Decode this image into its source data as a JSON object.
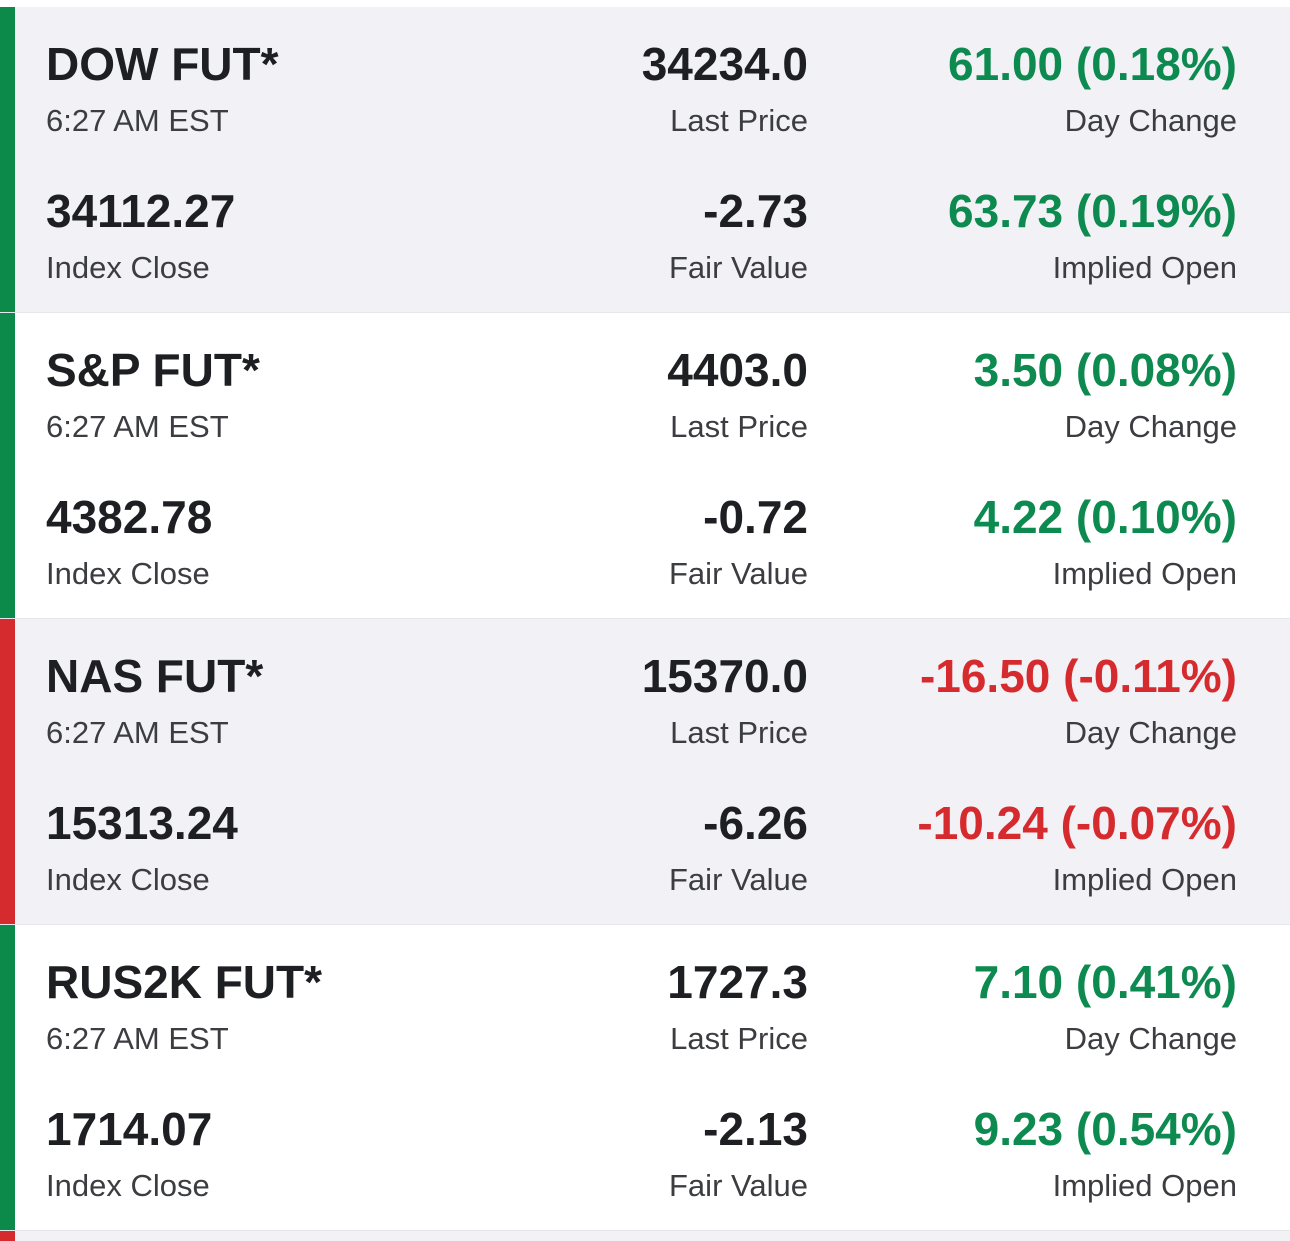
{
  "colors": {
    "positive": "#0d8a4f",
    "negative": "#d52b2e",
    "indicator_up": "#0b8a4a",
    "indicator_down": "#d52b2e"
  },
  "futures": [
    {
      "symbol": "DOW FUT*",
      "time": "6:27 AM EST",
      "last_price": "34234.0",
      "last_price_label": "Last Price",
      "day_change": "61.00 (0.18%)",
      "day_change_label": "Day Change",
      "index_close": "34112.27",
      "index_close_label": "Index Close",
      "fair_value": "-2.73",
      "fair_value_label": "Fair Value",
      "implied_open": "63.73 (0.19%)",
      "implied_open_label": "Implied Open",
      "direction": "up"
    },
    {
      "symbol": "S&P FUT*",
      "time": "6:27 AM EST",
      "last_price": "4403.0",
      "last_price_label": "Last Price",
      "day_change": "3.50 (0.08%)",
      "day_change_label": "Day Change",
      "index_close": "4382.78",
      "index_close_label": "Index Close",
      "fair_value": "-0.72",
      "fair_value_label": "Fair Value",
      "implied_open": "4.22 (0.10%)",
      "implied_open_label": "Implied Open",
      "direction": "up"
    },
    {
      "symbol": "NAS FUT*",
      "time": "6:27 AM EST",
      "last_price": "15370.0",
      "last_price_label": "Last Price",
      "day_change": "-16.50 (-0.11%)",
      "day_change_label": "Day Change",
      "index_close": "15313.24",
      "index_close_label": "Index Close",
      "fair_value": "-6.26",
      "fair_value_label": "Fair Value",
      "implied_open": "-10.24 (-0.07%)",
      "implied_open_label": "Implied Open",
      "direction": "down"
    },
    {
      "symbol": "RUS2K FUT*",
      "time": "6:27 AM EST",
      "last_price": "1727.3",
      "last_price_label": "Last Price",
      "day_change": "7.10 (0.41%)",
      "day_change_label": "Day Change",
      "index_close": "1714.07",
      "index_close_label": "Index Close",
      "fair_value": "-2.13",
      "fair_value_label": "Fair Value",
      "implied_open": "9.23 (0.54%)",
      "implied_open_label": "Implied Open",
      "direction": "up"
    }
  ]
}
